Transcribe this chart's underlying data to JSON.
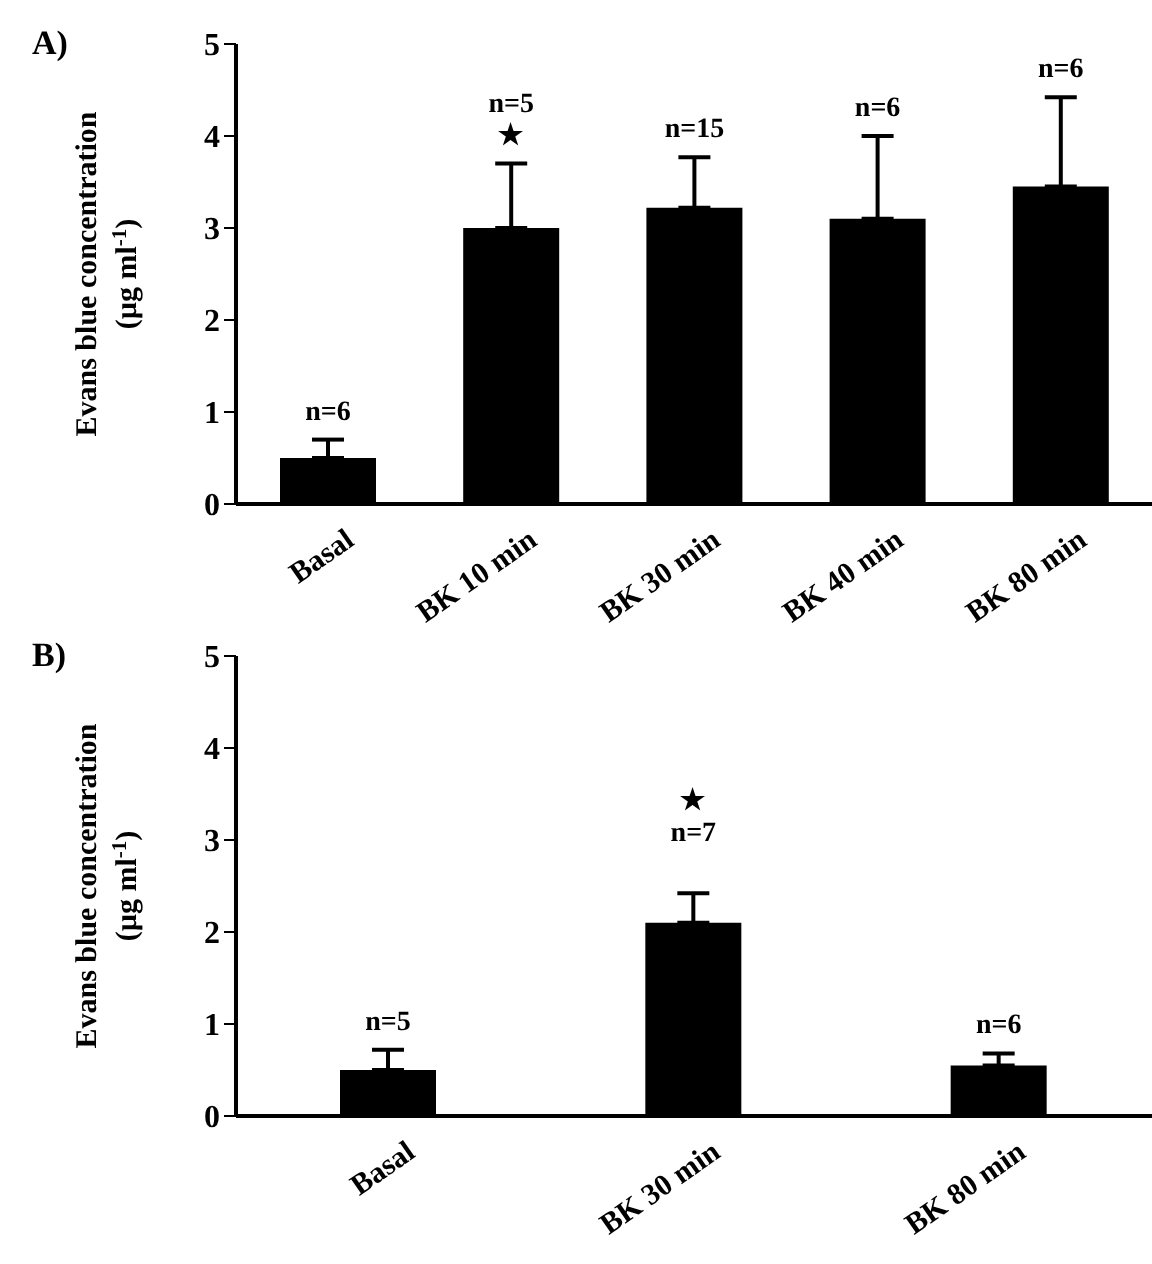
{
  "chart_data": [
    {
      "type": "bar",
      "title": "A)",
      "ylabel": "Evans  blue concentration\n(µg ml$^{-1}$)",
      "categories": [
        "Basal",
        "BK 10 min",
        "BK 30 min",
        "BK 40 min",
        "BK 80 min"
      ],
      "values": [
        0.5,
        3.0,
        3.22,
        3.1,
        3.45
      ],
      "errors": [
        [
          0.5,
          0.7
        ],
        [
          3.0,
          3.7
        ],
        [
          3.22,
          3.77
        ],
        [
          3.1,
          4.0
        ],
        [
          3.45,
          4.42
        ]
      ],
      "color": "#000000",
      "ylim": [
        0,
        5
      ],
      "yticks": [
        0,
        1,
        2,
        3,
        4,
        5
      ],
      "grid": false,
      "legend": false,
      "annotations": [
        "n=6",
        "n=5\n★",
        "n=15",
        "n=6",
        "n=6"
      ]
    },
    {
      "type": "bar",
      "title": "B)",
      "ylabel": "Evans  blue concentration\n(µg ml$^{-1}$)",
      "categories": [
        "Basal",
        "BK 30 min",
        "BK 80 min"
      ],
      "values": [
        0.5,
        2.1,
        0.55
      ],
      "errors": [
        [
          0.5,
          0.72
        ],
        [
          2.1,
          2.42
        ],
        [
          0.55,
          0.68
        ]
      ],
      "color": "#000000",
      "ylim": [
        0,
        5
      ],
      "yticks": [
        0,
        1,
        2,
        3,
        4,
        5
      ],
      "grid": false,
      "legend": false,
      "annotations": [
        "n=5",
        "★\n\nn=7",
        "n=6"
      ]
    }
  ]
}
